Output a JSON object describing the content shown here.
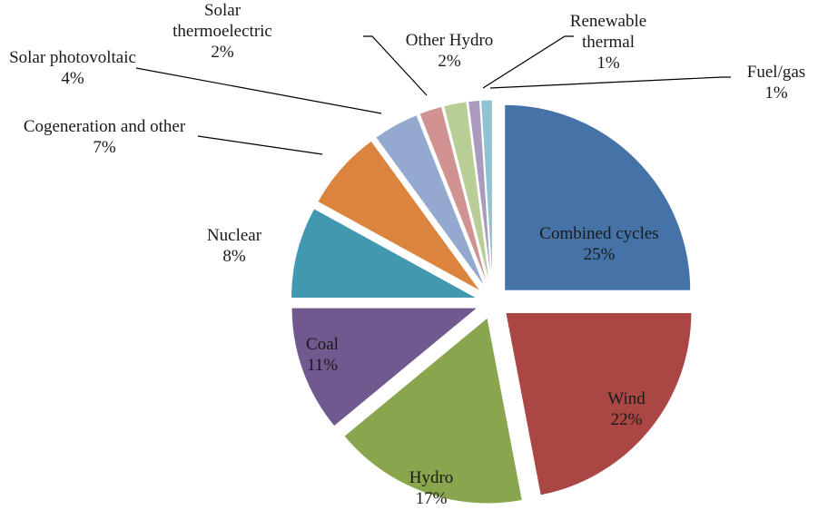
{
  "chart_data": {
    "type": "pie",
    "categories": [
      "Combined cycles",
      "Wind",
      "Hydro",
      "Coal",
      "Nuclear",
      "Cogeneration and other",
      "Solar photovoltaic",
      "Solar thermoelectric",
      "Other Hydro",
      "Renewable thermal",
      "Fuel/gas"
    ],
    "values": [
      25,
      22,
      17,
      11,
      8,
      7,
      4,
      2,
      2,
      1,
      1
    ],
    "value_labels": [
      "25%",
      "22%",
      "17%",
      "11%",
      "8%",
      "7%",
      "4%",
      "2%",
      "2%",
      "1%",
      "1%"
    ],
    "colors": [
      "#4572a7",
      "#aa4643",
      "#89a54e",
      "#71588f",
      "#4198af",
      "#db843d",
      "#93a9cf",
      "#d19392",
      "#b9cd96",
      "#a99bbd",
      "#92c3d4"
    ]
  }
}
